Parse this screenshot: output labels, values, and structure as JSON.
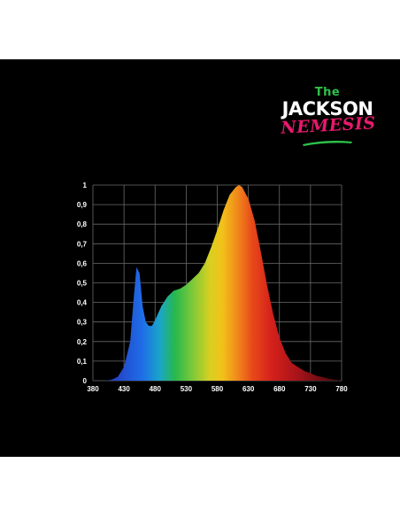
{
  "logo": {
    "line1": "The",
    "line2": "JACKSON",
    "line3": "NEMESIS",
    "colors": {
      "the": "#2ec24a",
      "jackson": "#ffffff",
      "nemesis": "#e8196c",
      "swoosh": "#2ec24a"
    }
  },
  "chart_data": {
    "type": "area",
    "title": "",
    "xlabel": "",
    "ylabel": "",
    "xlim": [
      380,
      780
    ],
    "ylim": [
      0,
      1
    ],
    "x_ticks": [
      "380",
      "430",
      "480",
      "530",
      "580",
      "630",
      "680",
      "730",
      "780"
    ],
    "y_ticks": [
      "0",
      "0,1",
      "0,2",
      "0,3",
      "0,4",
      "0,5",
      "0,6",
      "0,7",
      "0,8",
      "0,9",
      "1"
    ],
    "grid": true,
    "fill": "visible-spectrum gradient",
    "background": "#000000",
    "series": [
      {
        "x": [
          380,
          400,
          410,
          420,
          430,
          440,
          445,
          450,
          455,
          460,
          465,
          470,
          475,
          480,
          490,
          500,
          510,
          520,
          530,
          540,
          550,
          560,
          570,
          580,
          590,
          600,
          610,
          615,
          620,
          630,
          640,
          650,
          660,
          670,
          680,
          690,
          700,
          720,
          740,
          760,
          780
        ],
        "values": [
          0,
          0,
          0.005,
          0.02,
          0.07,
          0.2,
          0.4,
          0.58,
          0.55,
          0.38,
          0.3,
          0.28,
          0.28,
          0.31,
          0.38,
          0.43,
          0.46,
          0.47,
          0.49,
          0.52,
          0.55,
          0.6,
          0.68,
          0.77,
          0.87,
          0.95,
          0.99,
          1.0,
          0.99,
          0.93,
          0.82,
          0.66,
          0.49,
          0.34,
          0.22,
          0.14,
          0.09,
          0.05,
          0.025,
          0.01,
          0.0
        ]
      }
    ]
  }
}
